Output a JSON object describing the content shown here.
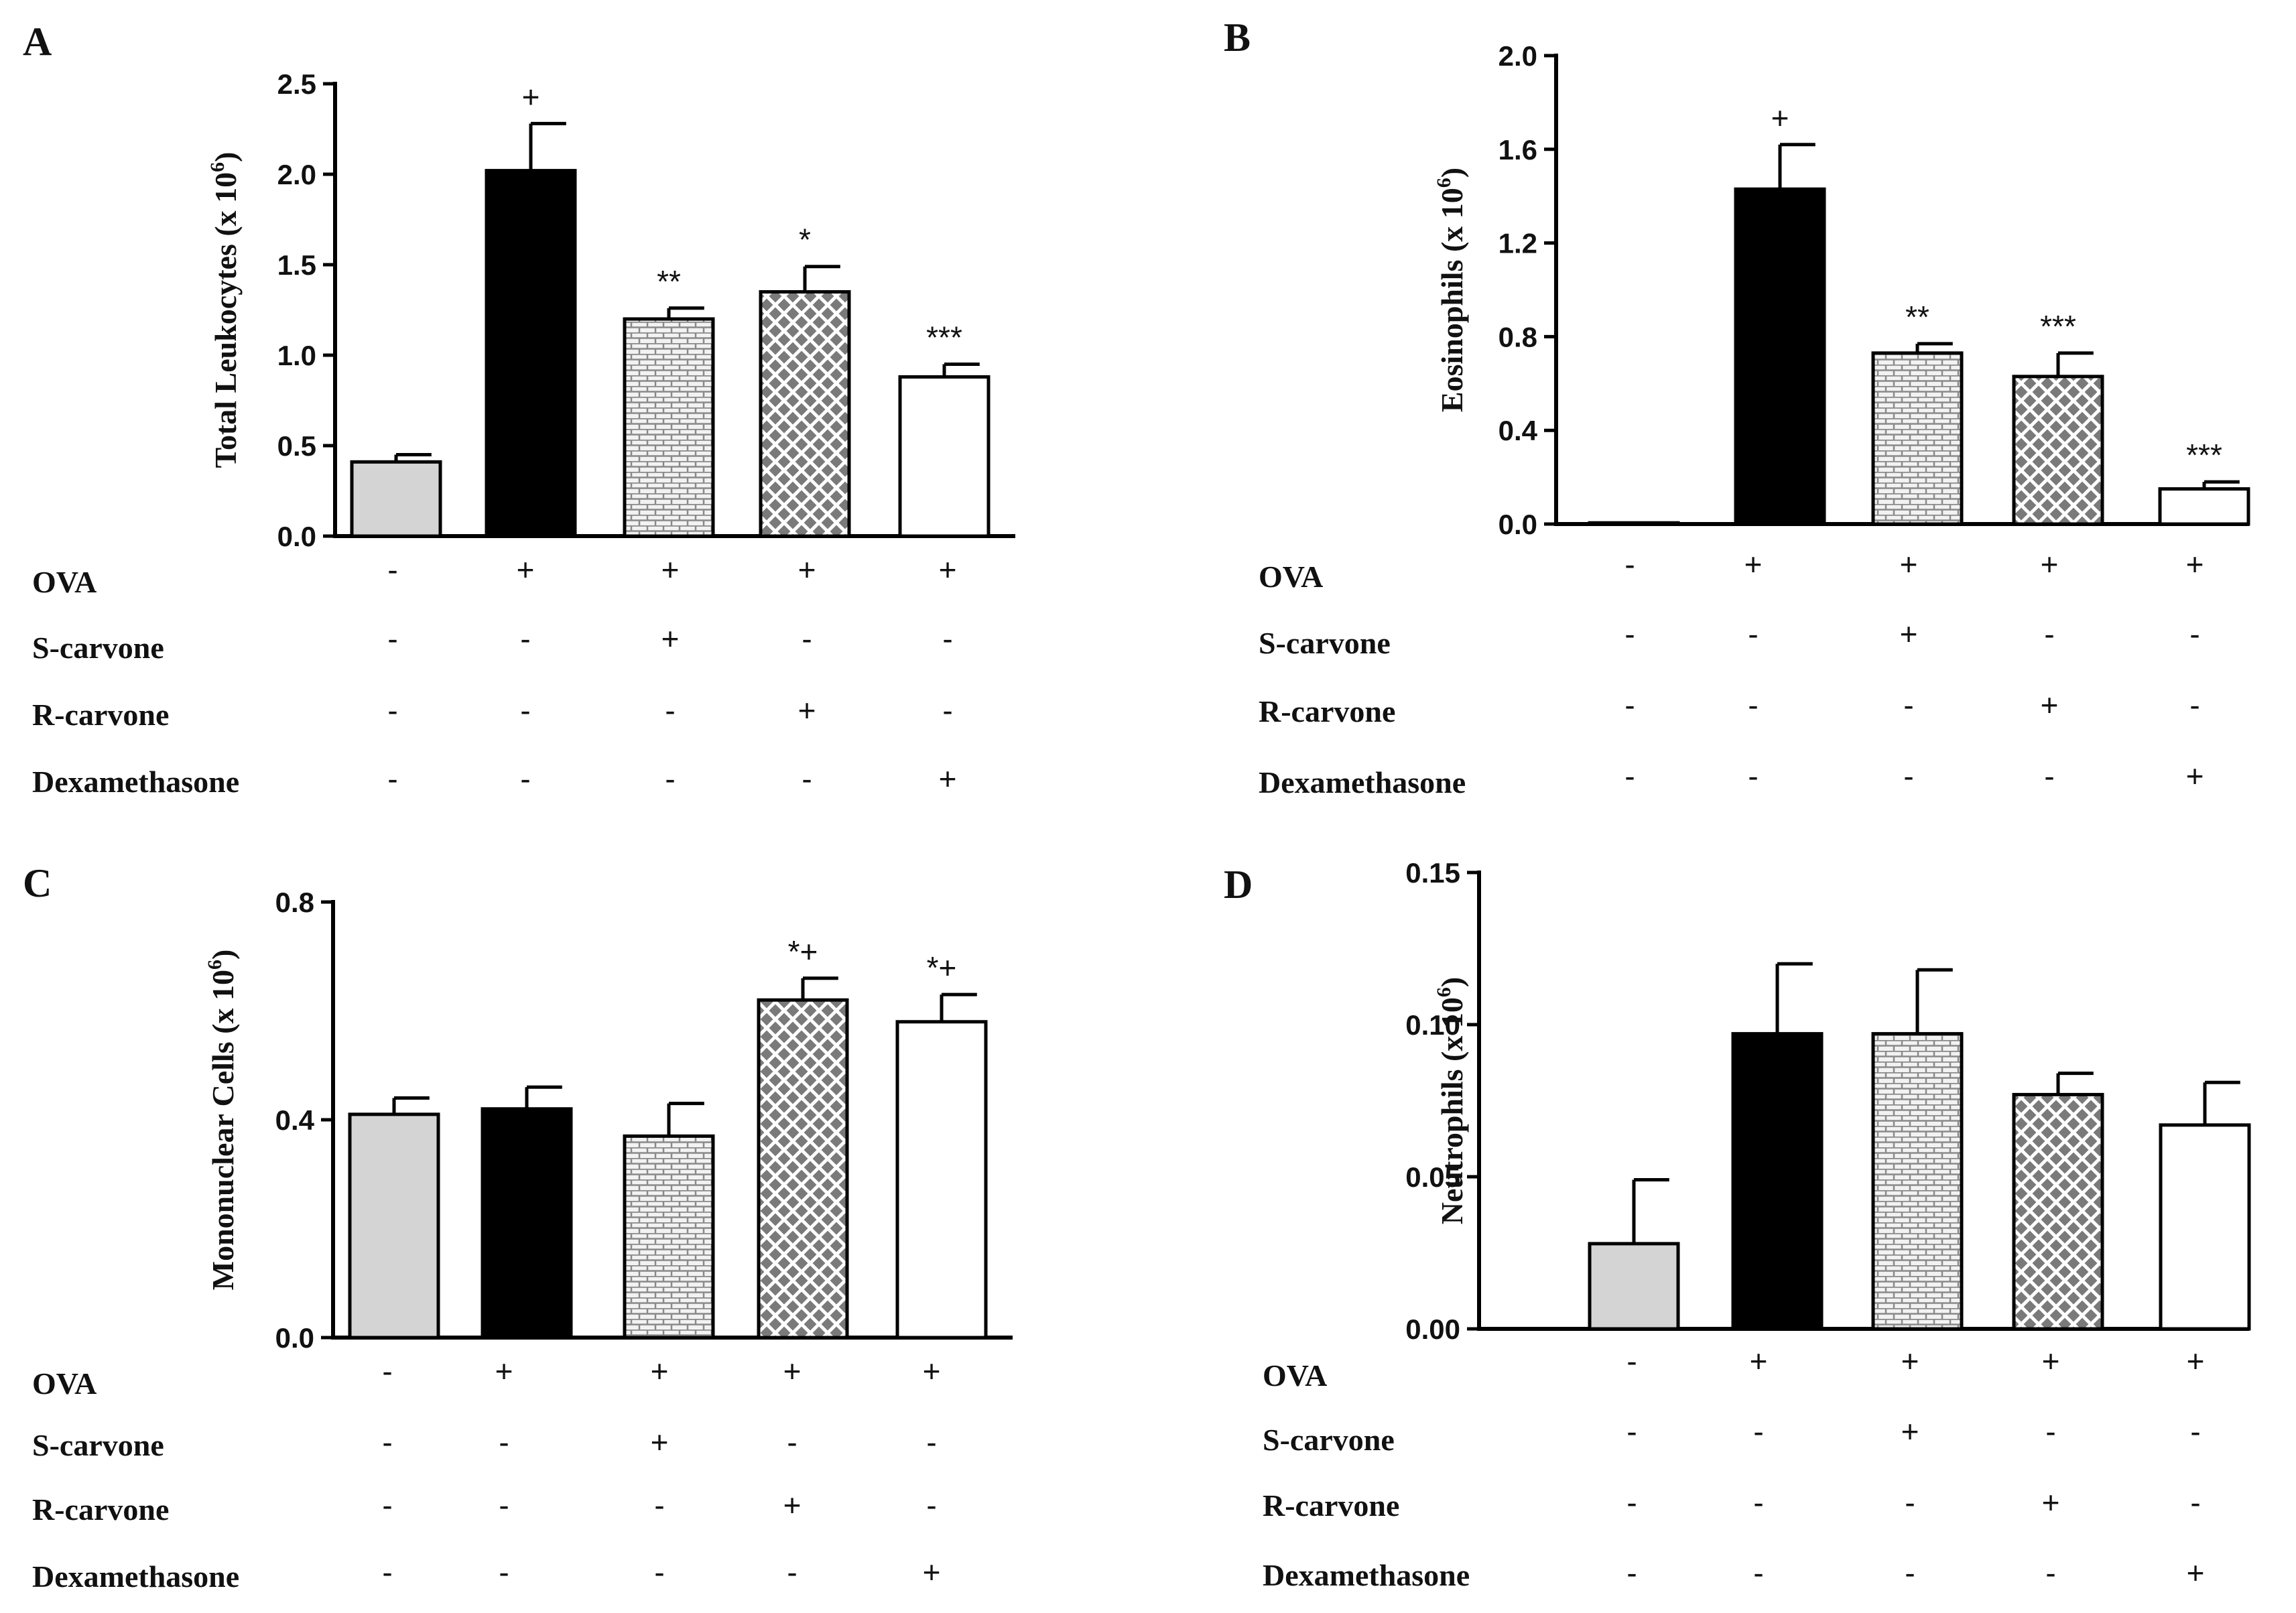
{
  "colors": {
    "control": "#d4d4d4",
    "ova": "#000000",
    "s_carvone_pattern": "#8a8a8a",
    "r_carvone_pattern": "#7a7a7a",
    "dexamethasone": "#ffffff"
  },
  "conditions": {
    "row_labels": [
      "OVA",
      "S-carvone",
      "R-carvone",
      "Dexamethasone"
    ],
    "signs": [
      [
        "-",
        "+",
        "+",
        "+",
        "+"
      ],
      [
        "-",
        "-",
        "+",
        "-",
        "-"
      ],
      [
        "-",
        "-",
        "-",
        "+",
        "-"
      ],
      [
        "-",
        "-",
        "-",
        "-",
        "+"
      ]
    ]
  },
  "chart_data": [
    {
      "panel": "A",
      "type": "bar",
      "ylabel": "Total Leukocytes (x 10",
      "ylabel_sup": "6",
      "ylabel_close": ")",
      "ylim": [
        0,
        2.5
      ],
      "yticks": [
        "0.0",
        "0.5",
        "1.0",
        "1.5",
        "2.0",
        "2.5"
      ],
      "ytick_values": [
        0,
        0.5,
        1.0,
        1.5,
        2.0,
        2.5
      ],
      "values": [
        0.41,
        2.02,
        1.2,
        1.35,
        0.88
      ],
      "errors": [
        0.04,
        0.26,
        0.06,
        0.14,
        0.07
      ],
      "annotations": [
        "",
        "+",
        "**",
        "*",
        "***"
      ]
    },
    {
      "panel": "B",
      "type": "bar",
      "ylabel": "Eosinophils (x 10",
      "ylabel_sup": "6",
      "ylabel_close": ")",
      "ylim": [
        0,
        2.0
      ],
      "yticks": [
        "0.0",
        "0.4",
        "0.8",
        "1.2",
        "1.6",
        "2.0"
      ],
      "ytick_values": [
        0,
        0.4,
        0.8,
        1.2,
        1.6,
        2.0
      ],
      "values": [
        0.005,
        1.43,
        0.73,
        0.63,
        0.15
      ],
      "errors": [
        0,
        0.19,
        0.04,
        0.1,
        0.03
      ],
      "annotations": [
        "",
        "+",
        "**",
        "***",
        "***"
      ]
    },
    {
      "panel": "C",
      "type": "bar",
      "ylabel": "Mononuclear Cells (x 10",
      "ylabel_sup": "6",
      "ylabel_close": ")",
      "ylim": [
        0,
        0.8
      ],
      "yticks": [
        "0.0",
        "0.4",
        "0.8"
      ],
      "ytick_values": [
        0,
        0.4,
        0.8
      ],
      "values": [
        0.41,
        0.42,
        0.37,
        0.62,
        0.58
      ],
      "errors": [
        0.03,
        0.04,
        0.06,
        0.04,
        0.05
      ],
      "annotations": [
        "",
        "",
        "",
        "*+",
        "*+"
      ]
    },
    {
      "panel": "D",
      "type": "bar",
      "ylabel": "Neutrophils (x 10",
      "ylabel_sup": "6",
      "ylabel_close": ")",
      "ylim": [
        0,
        0.15
      ],
      "yticks": [
        "0.00",
        "0.05",
        "0.10",
        "0.15"
      ],
      "ytick_values": [
        0,
        0.05,
        0.1,
        0.15
      ],
      "values": [
        0.028,
        0.097,
        0.097,
        0.077,
        0.067
      ],
      "errors": [
        0.021,
        0.023,
        0.021,
        0.007,
        0.014
      ],
      "annotations": [
        "",
        "",
        "",
        "",
        ""
      ]
    }
  ]
}
